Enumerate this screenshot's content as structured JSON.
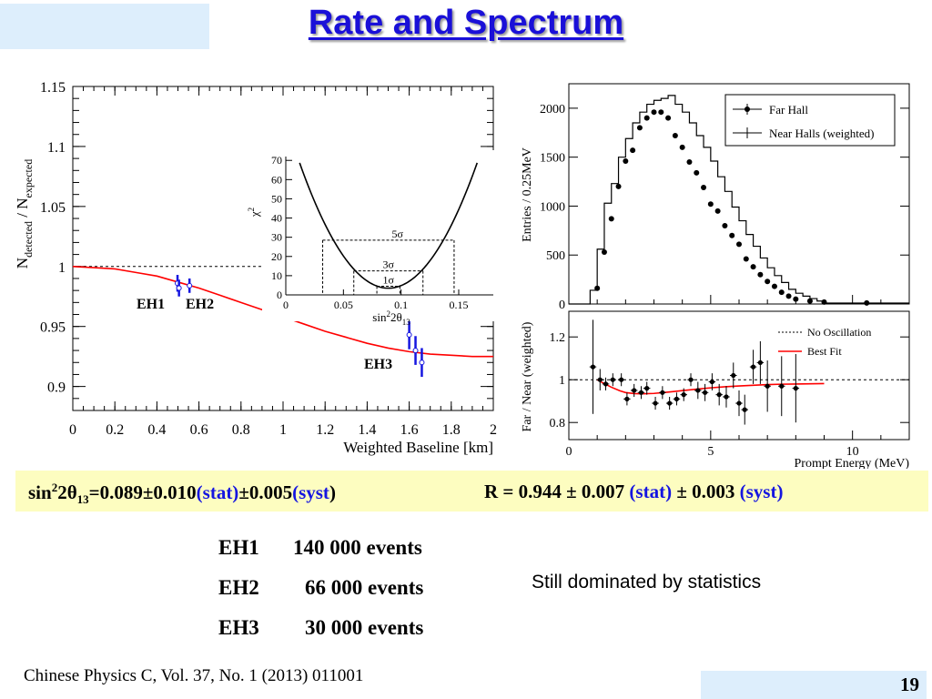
{
  "slide": {
    "title": "Rate and Spectrum",
    "result_theta": {
      "prefix": "sin",
      "sup": "2",
      "mid": "2θ",
      "sub": "13",
      "value": "=0.089±0.010",
      "stat": "(stat)",
      "syst_val": "±0.005",
      "syst": "(syst",
      "close": ")"
    },
    "result_r": {
      "value": "R = 0.944 ± 0.007",
      "stat": "(stat)",
      "syst_val": "± 0.003",
      "syst": "(syst)"
    },
    "events": [
      {
        "hall": "EH1",
        "count": "140 000 events"
      },
      {
        "hall": "EH2",
        "count": "66 000 events"
      },
      {
        "hall": "EH3",
        "count": "30 000 events"
      }
    ],
    "note": "Still dominated by statistics",
    "citation": "Chinese Physics C, Vol. 37, No. 1 (2013) 011001",
    "page_number": "19"
  },
  "chart_data": [
    {
      "type": "scatter",
      "ylabel_main": "N",
      "ylabel_sub1": "detected",
      "ylabel_mid": " / N",
      "ylabel_sub2": "expected",
      "xlabel": "Weighted Baseline [km]",
      "xlim": [
        0,
        2
      ],
      "ylim": [
        0.88,
        1.15
      ],
      "x_ticks": [
        "0",
        "0.2",
        "0.4",
        "0.6",
        "0.8",
        "1",
        "1.2",
        "1.4",
        "1.6",
        "1.8",
        "2"
      ],
      "y_ticks": [
        "0.9",
        "0.95",
        "1",
        "1.05",
        "1.1",
        "1.15"
      ],
      "reference_line": {
        "y": 1.0,
        "style": "dotted"
      },
      "best_fit_curve": {
        "color": "#ff0000",
        "x": [
          0,
          0.1,
          0.2,
          0.3,
          0.4,
          0.5,
          0.6,
          0.7,
          0.8,
          0.9,
          1.0,
          1.1,
          1.2,
          1.3,
          1.4,
          1.5,
          1.6,
          1.7,
          1.8,
          1.9,
          2.0
        ],
        "y": [
          1.0,
          0.999,
          0.998,
          0.995,
          0.992,
          0.987,
          0.982,
          0.976,
          0.97,
          0.964,
          0.958,
          0.952,
          0.946,
          0.941,
          0.936,
          0.932,
          0.929,
          0.927,
          0.926,
          0.925,
          0.925
        ]
      },
      "points": [
        {
          "x": 0.498,
          "y": 0.986,
          "err": 0.007
        },
        {
          "x": 0.505,
          "y": 0.982,
          "err": 0.007
        },
        {
          "x": 0.555,
          "y": 0.984,
          "err": 0.006
        },
        {
          "x": 1.6,
          "y": 0.943,
          "err": 0.012
        },
        {
          "x": 1.63,
          "y": 0.93,
          "err": 0.012
        },
        {
          "x": 1.66,
          "y": 0.92,
          "err": 0.012
        }
      ],
      "point_color": "#1515e0",
      "labels": [
        "EH1",
        "EH2",
        "EH3"
      ]
    },
    {
      "type": "line",
      "ylabel": "χ",
      "ylabel_sup": "2",
      "xlabel_main": "sin",
      "xlabel_sup": "2",
      "xlabel_mid": "2θ",
      "xlabel_sub": "13",
      "xlim": [
        0,
        0.18
      ],
      "ylim": [
        0,
        72
      ],
      "x_ticks": [
        "0",
        "0.05",
        "0.1",
        "0.15"
      ],
      "y_ticks": [
        "0",
        "10",
        "20",
        "30",
        "40",
        "50",
        "60",
        "70"
      ],
      "minimum": {
        "x": 0.089,
        "y": 3.5
      },
      "curvature": 11000,
      "sigma_levels": [
        {
          "label": "1σ",
          "y": 4.5,
          "x1": 0.079,
          "x2": 0.099
        },
        {
          "label": "3σ",
          "y": 12.5,
          "x1": 0.059,
          "x2": 0.119
        },
        {
          "label": "5σ",
          "y": 28.5,
          "x1": 0.032,
          "x2": 0.146
        }
      ]
    },
    {
      "type": "bar",
      "ylabel": "Entries / 0.25MeV",
      "xlim": [
        0,
        12
      ],
      "ylim": [
        0,
        2250
      ],
      "y_ticks": [
        "0",
        "500",
        "1000",
        "1500",
        "2000"
      ],
      "legend": [
        "Far Hall",
        "Near Halls (weighted)"
      ],
      "legend_position": "top-right",
      "near_hist": {
        "edges_start": 0.75,
        "bin_width": 0.25,
        "values": [
          140,
          560,
          1030,
          1230,
          1500,
          1690,
          1850,
          1960,
          2040,
          2080,
          2100,
          2130,
          2040,
          1960,
          1850,
          1720,
          1600,
          1460,
          1300,
          1150,
          990,
          850,
          710,
          590,
          470,
          370,
          290,
          220,
          150,
          110,
          80,
          55,
          30,
          10
        ],
        "tail": [
          {
            "x1": 9.25,
            "x2": 12.0,
            "value": 10
          }
        ]
      },
      "far_points": {
        "x": [
          1.0,
          1.25,
          1.5,
          1.75,
          2.0,
          2.25,
          2.5,
          2.75,
          3.0,
          3.25,
          3.5,
          3.75,
          4.0,
          4.25,
          4.5,
          4.75,
          5.0,
          5.25,
          5.5,
          5.75,
          6.0,
          6.25,
          6.5,
          6.75,
          7.0,
          7.25,
          7.5,
          7.75,
          8.0,
          8.5,
          9.0,
          10.5
        ],
        "y": [
          160,
          530,
          870,
          1200,
          1460,
          1570,
          1800,
          1900,
          1960,
          1960,
          1900,
          1720,
          1600,
          1450,
          1340,
          1190,
          1020,
          950,
          800,
          700,
          610,
          460,
          380,
          300,
          230,
          180,
          120,
          80,
          50,
          30,
          20,
          10
        ]
      }
    },
    {
      "type": "scatter",
      "ylabel": "Far / Near (weighted)",
      "xlabel": "Prompt Energy (MeV)",
      "xlim": [
        0,
        12
      ],
      "ylim": [
        0.72,
        1.32
      ],
      "x_ticks": [
        "0",
        "5",
        "10"
      ],
      "y_ticks": [
        "0.8",
        "1",
        "1.2"
      ],
      "legend": [
        "No Oscillation",
        "Best Fit"
      ],
      "legend_position": "top-right",
      "reference_line": {
        "y": 1.0,
        "style": "dotted"
      },
      "best_fit_curve": {
        "color": "#ff0000",
        "x": [
          1.0,
          1.2,
          1.5,
          1.8,
          2.0,
          2.3,
          2.6,
          3.0,
          3.5,
          4.0,
          4.5,
          5.0,
          5.5,
          6.0,
          6.5,
          7.0,
          7.5,
          8.0,
          8.5,
          9.0
        ],
        "y": [
          1.0,
          0.985,
          0.965,
          0.948,
          0.94,
          0.935,
          0.934,
          0.936,
          0.942,
          0.949,
          0.956,
          0.962,
          0.967,
          0.971,
          0.974,
          0.977,
          0.979,
          0.98,
          0.981,
          0.982
        ]
      },
      "points": {
        "x": [
          0.85,
          1.1,
          1.3,
          1.55,
          1.85,
          2.05,
          2.3,
          2.55,
          2.75,
          3.05,
          3.3,
          3.55,
          3.8,
          4.05,
          4.3,
          4.55,
          4.8,
          5.05,
          5.3,
          5.55,
          5.8,
          6.0,
          6.2,
          6.5,
          6.75,
          7.0,
          7.5,
          8.0
        ],
        "y": [
          1.06,
          1.0,
          0.98,
          1.0,
          1.0,
          0.91,
          0.95,
          0.94,
          0.96,
          0.89,
          0.94,
          0.89,
          0.91,
          0.93,
          1.0,
          0.95,
          0.94,
          0.99,
          0.93,
          0.92,
          1.02,
          0.89,
          0.86,
          1.06,
          1.08,
          0.97,
          0.97,
          0.96
        ],
        "err": [
          0.22,
          0.05,
          0.03,
          0.03,
          0.03,
          0.03,
          0.03,
          0.03,
          0.03,
          0.03,
          0.03,
          0.03,
          0.03,
          0.03,
          0.03,
          0.04,
          0.04,
          0.04,
          0.05,
          0.05,
          0.06,
          0.06,
          0.07,
          0.08,
          0.1,
          0.12,
          0.14,
          0.16
        ]
      }
    }
  ]
}
